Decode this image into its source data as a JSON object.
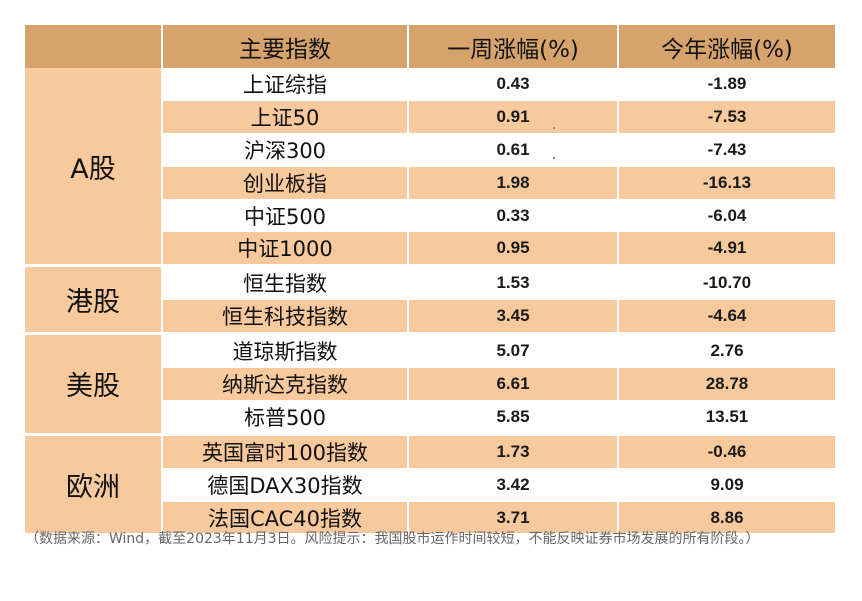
{
  "header": {
    "col_index": "主要指数",
    "col_week": "一周涨幅(%)",
    "col_ytd": "今年涨幅(%)"
  },
  "groups": [
    {
      "label": "A股",
      "rows": [
        {
          "name": "上证综指",
          "week": "0.43",
          "ytd": "-1.89"
        },
        {
          "name": "上证50",
          "week": "0.91",
          "ytd": "-7.53"
        },
        {
          "name": "沪深300",
          "week": "0.61",
          "ytd": "-7.43"
        },
        {
          "name": "创业板指",
          "week": "1.98",
          "ytd": "-16.13"
        },
        {
          "name": "中证500",
          "week": "0.33",
          "ytd": "-6.04"
        },
        {
          "name": "中证1000",
          "week": "0.95",
          "ytd": "-4.91"
        }
      ]
    },
    {
      "label": "港股",
      "rows": [
        {
          "name": "恒生指数",
          "week": "1.53",
          "ytd": "-10.70"
        },
        {
          "name": "恒生科技指数",
          "week": "3.45",
          "ytd": "-4.64"
        }
      ]
    },
    {
      "label": "美股",
      "rows": [
        {
          "name": "道琼斯指数",
          "week": "5.07",
          "ytd": "2.76"
        },
        {
          "name": "纳斯达克指数",
          "week": "6.61",
          "ytd": "28.78"
        },
        {
          "name": "标普500",
          "week": "5.85",
          "ytd": "13.51"
        }
      ]
    },
    {
      "label": "欧洲",
      "rows": [
        {
          "name": "英国富时100指数",
          "week": "1.73",
          "ytd": "-0.46"
        },
        {
          "name": "德国DAX30指数",
          "week": "3.42",
          "ytd": "9.09"
        },
        {
          "name": "法国CAC40指数",
          "week": "3.71",
          "ytd": "8.86"
        }
      ]
    }
  ],
  "footnote": "（数据来源：Wind，截至2023年11月3日。风险提示：我国股市运作时间较短，不能反映证券市场发展的所有阶段。）",
  "colors": {
    "header_bg": "#d7a36d",
    "band_bg": "#f7c99c",
    "plain_bg": "#ffffff"
  }
}
